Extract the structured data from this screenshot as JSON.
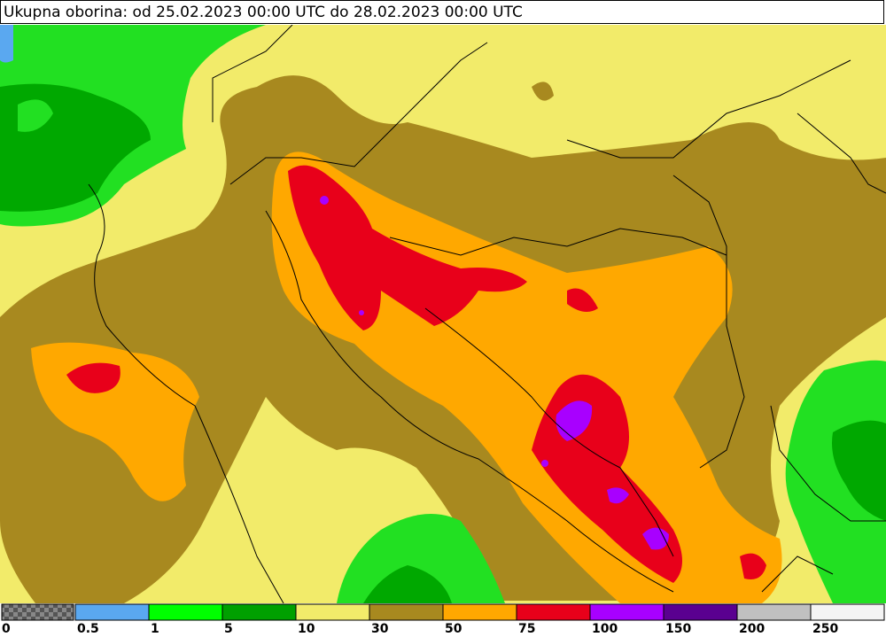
{
  "title": "Ukupna oborina: od 25.02.2023 00:00 UTC do 28.02.2023 00:00 UTC",
  "legend": {
    "labels": [
      0,
      0.5,
      1,
      5,
      10,
      30,
      50,
      75,
      100,
      150,
      200,
      250
    ],
    "colors": [
      "#5aa8f0",
      "#00ff00",
      "#00a000",
      "#f2eb6a",
      "#a8891f",
      "#ffa800",
      "#e8001a",
      "#a800ff",
      "#5a0090",
      "#c0c0c0",
      "#f4f4f4"
    ]
  }
}
